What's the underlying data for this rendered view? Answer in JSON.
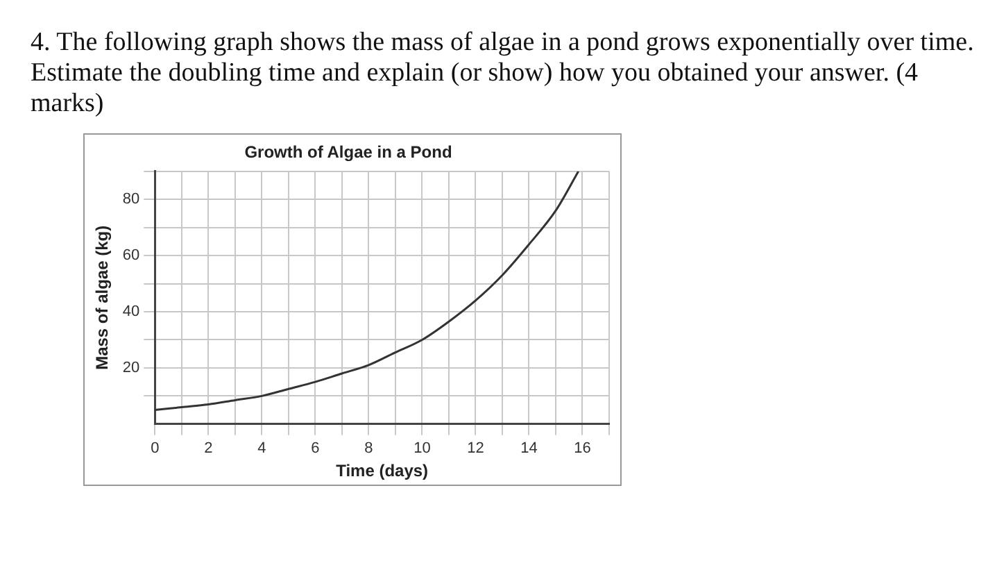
{
  "chart_data": {
    "type": "line",
    "title": "Growth of Algae in a Pond",
    "xlabel": "Time (days)",
    "ylabel": "Mass of algae (kg)",
    "annotations": [
      "4. The following graph shows the mass of algae in a pond grows exponentially over time. Estimate the doubling time and explain (or show) how you obtained your answer. (4 marks)"
    ],
    "x": [
      0,
      1,
      2,
      3,
      4,
      5,
      6,
      7,
      8,
      9,
      10,
      11,
      12,
      13,
      14,
      15,
      15.85
    ],
    "series": [
      {
        "color": "#333333",
        "values": [
          5,
          6,
          7,
          8.5,
          10,
          12.5,
          15,
          18,
          21,
          25.5,
          30,
          36.5,
          44,
          53,
          64,
          76,
          90
        ]
      }
    ],
    "xlim": [
      0,
      17
    ],
    "ylim": [
      0,
      90
    ],
    "xticks": [
      0,
      {
        "value": 1,
        "label": null
      },
      2,
      {
        "value": 3,
        "label": null
      },
      4,
      {
        "value": 5,
        "label": null
      },
      6,
      {
        "value": 7,
        "label": null
      },
      8,
      {
        "value": 9,
        "label": null
      },
      10,
      {
        "value": 11,
        "label": null
      },
      12,
      {
        "value": 13,
        "label": null
      },
      14,
      {
        "value": 15,
        "label": null
      },
      16,
      {
        "value": 17,
        "label": null
      }
    ],
    "yticks": [
      {
        "value": 10,
        "label": null
      },
      20,
      {
        "value": 30,
        "label": null
      },
      40,
      {
        "value": 50,
        "label": null
      },
      60,
      {
        "value": 70,
        "label": null
      },
      80,
      {
        "value": 90,
        "label": null
      }
    ],
    "grid": true,
    "legend": false,
    "marker": "none",
    "line_style": "solid"
  }
}
